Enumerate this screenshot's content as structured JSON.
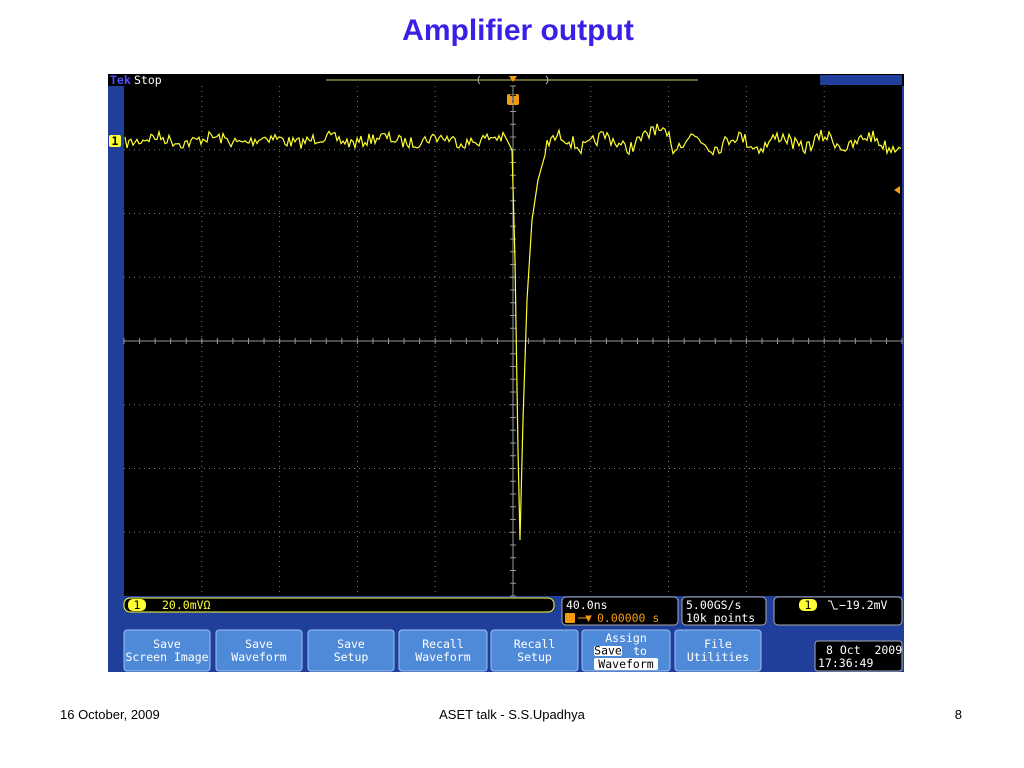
{
  "slide": {
    "title": "Amplifier output"
  },
  "scope": {
    "brand": "Tek",
    "status": "Stop",
    "trigger_marker": "T",
    "channel": "1",
    "channel_scale": "20.0mVΩ",
    "timebase": "40.0ns",
    "trigger_position": "0.00000 s",
    "sample_rate": "5.00GS/s",
    "record_length": "10k points",
    "trigger_level": "−19.2mV",
    "buttons": [
      {
        "lines": [
          "Save",
          "Screen Image"
        ]
      },
      {
        "lines": [
          "Save",
          "Waveform"
        ]
      },
      {
        "lines": [
          "Save",
          "Setup"
        ]
      },
      {
        "lines": [
          "Recall",
          "Waveform"
        ]
      },
      {
        "lines": [
          "Recall",
          "Setup"
        ]
      },
      {
        "lines": [
          "Assign",
          "Save",
          "to",
          "Waveform"
        ]
      },
      {
        "lines": [
          "File",
          "Utilities"
        ]
      }
    ],
    "date": "8 Oct  2009",
    "time": "17:36:49"
  },
  "footer": {
    "date": "16 October, 2009",
    "talk": "ASET talk -  S.S.Upadhya",
    "page": "8"
  }
}
